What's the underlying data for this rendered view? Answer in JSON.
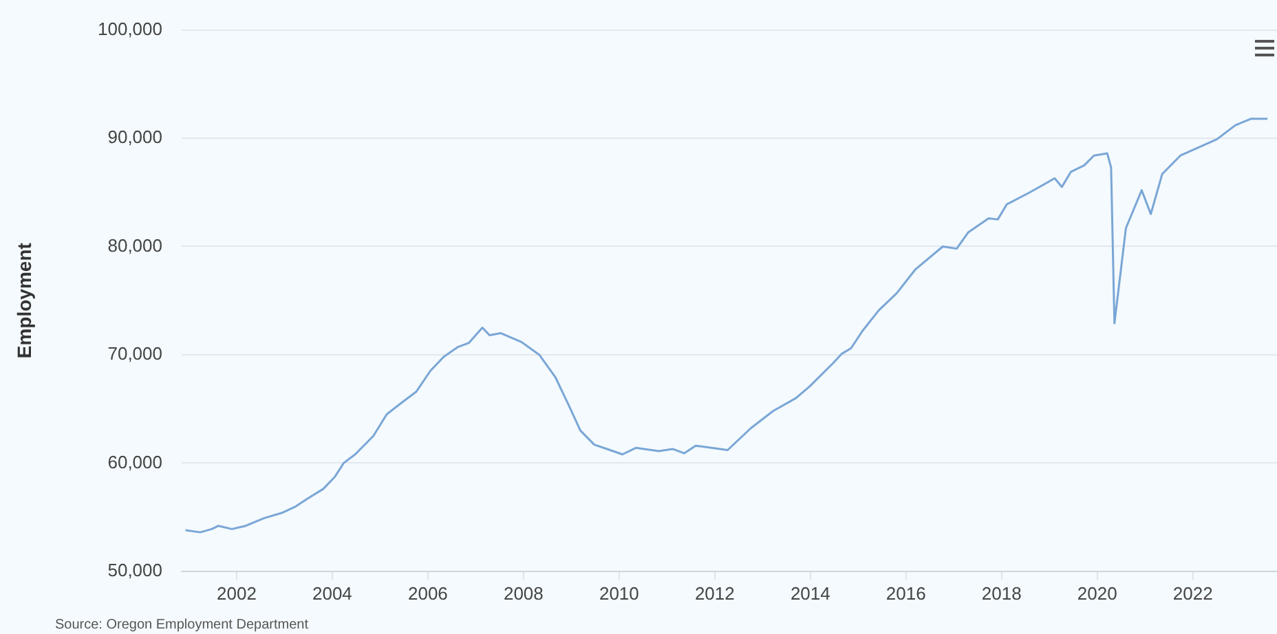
{
  "chart_data": {
    "type": "line",
    "ylabel": "Employment",
    "annotations": [
      "Source: Oregon Employment Department"
    ],
    "x": [
      2000.93,
      2001.24,
      2001.48,
      2001.62,
      2001.9,
      2002.19,
      2002.57,
      2002.95,
      2003.24,
      2003.48,
      2003.81,
      2004.05,
      2004.24,
      2004.48,
      2004.86,
      2005.14,
      2005.43,
      2005.76,
      2006.05,
      2006.33,
      2006.62,
      2006.86,
      2007.14,
      2007.29,
      2007.52,
      2007.95,
      2008.33,
      2008.67,
      2008.95,
      2009.19,
      2009.48,
      2009.81,
      2010.07,
      2010.35,
      2010.83,
      2011.12,
      2011.36,
      2011.6,
      2012.27,
      2012.75,
      2013.22,
      2013.7,
      2013.99,
      2014.47,
      2014.66,
      2014.85,
      2015.09,
      2015.43,
      2015.81,
      2016.2,
      2016.77,
      2017.06,
      2017.3,
      2017.73,
      2017.92,
      2018.11,
      2018.59,
      2019.11,
      2019.26,
      2019.45,
      2019.73,
      2019.93,
      2020.21,
      2020.29,
      2020.36,
      2020.6,
      2020.93,
      2021.12,
      2021.36,
      2021.74,
      2022.5,
      2022.89,
      2023.22,
      2023.56
    ],
    "series": [
      {
        "color": "#7aa6d6",
        "values": [
          53800,
          53600,
          53900,
          54200,
          53900,
          54200,
          54900,
          55400,
          56000,
          56700,
          57600,
          58700,
          60000,
          60800,
          62500,
          64500,
          65500,
          66600,
          68500,
          69800,
          70700,
          71100,
          72500,
          71800,
          72000,
          71200,
          70000,
          67900,
          65300,
          63000,
          61700,
          61200,
          60800,
          61400,
          61100,
          61300,
          60900,
          61600,
          61200,
          63200,
          64800,
          66000,
          67100,
          69200,
          70100,
          70600,
          72200,
          74100,
          75700,
          77900,
          80000,
          79800,
          81300,
          82600,
          82500,
          83900,
          85000,
          86300,
          85500,
          86900,
          87500,
          88400,
          88600,
          87300,
          72900,
          81700,
          85200,
          83000,
          86700,
          88400,
          89900,
          91200,
          91800,
          91800
        ]
      }
    ],
    "xlim": [
      2000.85,
      2023.76
    ],
    "xticks": [
      2002,
      2004,
      2006,
      2008,
      2010,
      2012,
      2014,
      2016,
      2018,
      2020,
      2022
    ],
    "ylim": [
      50000,
      100000
    ],
    "yticks": [
      {
        "value": 50000,
        "label": "50,000"
      },
      {
        "value": 60000,
        "label": "60,000"
      },
      {
        "value": 70000,
        "label": "70,000"
      },
      {
        "value": 80000,
        "label": "80,000"
      },
      {
        "value": 90000,
        "label": "90,000"
      },
      {
        "value": 100000,
        "label": "100,000"
      }
    ],
    "grid": "y",
    "legend": false,
    "marker": "none",
    "line_style": "solid"
  }
}
